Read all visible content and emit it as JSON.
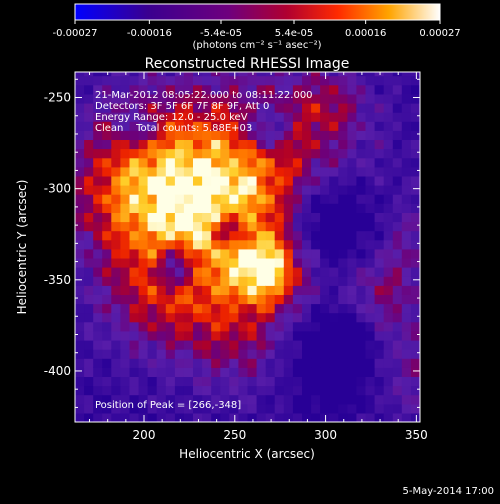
{
  "chart_data": {
    "type": "heatmap",
    "title": "Reconstructed RHESSI Image",
    "xlabel": "Heliocentric X (arcsec)",
    "ylabel": "Heliocentric Y (arcsec)",
    "xlim": [
      162,
      352
    ],
    "ylim": [
      -428,
      -236
    ],
    "x_ticks": [
      200,
      250,
      300,
      350
    ],
    "y_ticks": [
      -250,
      -300,
      -350,
      -400
    ],
    "colorbar": {
      "min": -0.00027,
      "max": 0.00027,
      "tick_values": [
        -0.00027,
        -0.00016,
        -5.4e-05,
        5.4e-05,
        0.00016,
        0.00027
      ],
      "tick_labels": [
        "-0.00027",
        "-0.00016",
        "-5.4e-05",
        "5.4e-05",
        "0.00016",
        "0.00027"
      ],
      "units": "(photons cm⁻² s⁻¹ asec⁻²)"
    },
    "annotations": [
      "21-Mar-2012 08:05:22.000 to 08:11:22.000",
      "Detectors: 3F 5F 6F 7F 8F 9F, Att 0",
      "Energy Range: 12.0 - 25.0 keV",
      "Clean    Total counts: 5.88E+03"
    ],
    "peak_label": "Position of Peak = [266,-348]",
    "peak": [
      266,
      -348
    ],
    "grid": false,
    "legend": "none"
  },
  "footer": {
    "timestamp": "5-May-2014 17:00"
  },
  "colors": {
    "background": "#000000",
    "axes": "#ffffff"
  }
}
